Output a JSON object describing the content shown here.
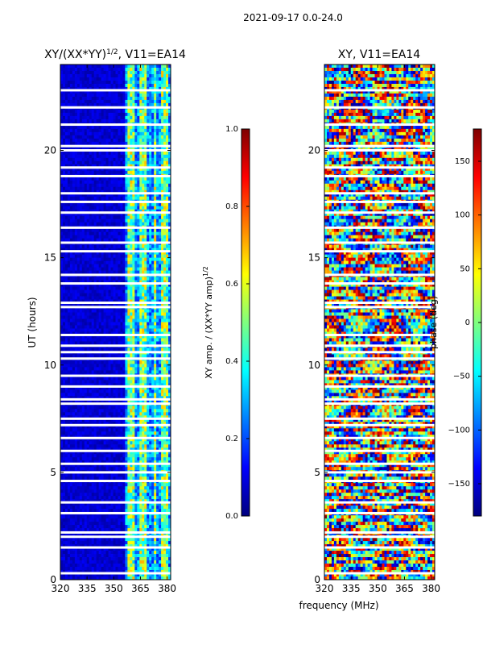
{
  "figure_title": "2021-09-17 0.0-24.0",
  "x_axis_shared_label": "frequency (MHz)",
  "chart_data": [
    {
      "type": "heatmap",
      "title_main": "XY/(XX*YY)",
      "title_sup": "1/2",
      "title_rest": ", V11=EA14",
      "xlabel": "",
      "ylabel": "UT (hours)",
      "xlim": [
        320,
        382
      ],
      "ylim": [
        0,
        24
      ],
      "xticks": [
        320,
        335,
        350,
        365,
        380
      ],
      "yticks": [
        0,
        5,
        10,
        15,
        20
      ],
      "colorbar": {
        "label_main": "XY amp. / (XX*YY amp)",
        "label_sup": "1/2",
        "range": [
          0.0,
          1.0
        ],
        "ticks": [
          "0.0",
          "0.2",
          "0.4",
          "0.6",
          "0.8",
          "1.0"
        ],
        "tick_values": [
          0.0,
          0.2,
          0.4,
          0.6,
          0.8,
          1.0
        ]
      },
      "flagged_gaps_hours": [
        0.3,
        1.5,
        2.0,
        2.2,
        3.1,
        3.6,
        4.6,
        5.0,
        5.4,
        6.0,
        6.6,
        7.2,
        7.5,
        8.2,
        8.4,
        9.0,
        9.5,
        10.3,
        10.6,
        10.9,
        11.4,
        12.7,
        12.9,
        13.8,
        14.2,
        15.3,
        15.7,
        16.4,
        17.1,
        17.6,
        18.0,
        18.8,
        19.2,
        20.0,
        20.2,
        21.2,
        22.0,
        22.8
      ],
      "bright_channel_bands_mhz": [
        [
          358,
          362
        ],
        [
          365,
          369
        ],
        [
          372,
          374
        ],
        [
          377,
          380
        ]
      ]
    },
    {
      "type": "heatmap",
      "title": "XY, V11=EA14",
      "xlabel": "",
      "ylabel": "",
      "xlim": [
        320,
        382
      ],
      "ylim": [
        0,
        24
      ],
      "xticks": [
        320,
        335,
        350,
        365,
        380
      ],
      "yticks": [
        0,
        5,
        10,
        15,
        20
      ],
      "colorbar": {
        "label": "phase (deg)",
        "range": [
          -180,
          180
        ],
        "ticks": [
          "−150",
          "−100",
          "−50",
          "0",
          "50",
          "100",
          "150"
        ],
        "tick_values": [
          -150,
          -100,
          -50,
          0,
          50,
          100,
          150
        ]
      },
      "flagged_gaps_hours": [
        0.3,
        1.5,
        2.0,
        2.2,
        3.1,
        3.6,
        4.6,
        5.0,
        5.4,
        6.0,
        6.6,
        7.2,
        7.5,
        8.2,
        8.4,
        9.0,
        9.5,
        10.3,
        10.6,
        10.9,
        11.4,
        12.7,
        12.9,
        13.8,
        14.2,
        15.3,
        15.7,
        16.4,
        17.1,
        17.6,
        18.0,
        18.8,
        19.2,
        20.0,
        20.2,
        21.2,
        22.0,
        22.8
      ]
    }
  ],
  "colors": {
    "jet": [
      "#00007f",
      "#0000ff",
      "#007fff",
      "#00ffff",
      "#7fff7f",
      "#ffff00",
      "#ff7f00",
      "#ff0000",
      "#7f0000"
    ]
  }
}
